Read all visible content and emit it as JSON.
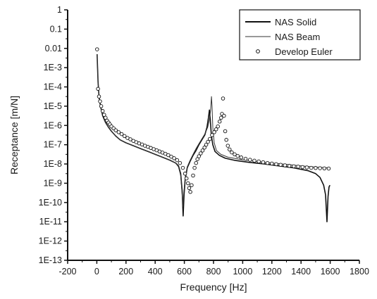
{
  "chart_data": {
    "type": "line",
    "title": "",
    "xlabel": "Frequency [Hz]",
    "ylabel": "Receptance [m/N]",
    "xlim": [
      -200,
      1800
    ],
    "ylim_log10": [
      -13,
      0
    ],
    "yscale": "log",
    "x_ticks": [
      -200,
      0,
      200,
      400,
      600,
      800,
      1000,
      1200,
      1400,
      1600,
      1800
    ],
    "x_tick_labels": [
      "-200",
      "0",
      "200",
      "400",
      "600",
      "800",
      "1000",
      "1200",
      "1400",
      "1600",
      "1800"
    ],
    "y_ticks_log10": [
      0,
      -1,
      -2,
      -3,
      -4,
      -5,
      -6,
      -7,
      -8,
      -9,
      -10,
      -11,
      -12,
      -13
    ],
    "y_tick_labels": [
      "1",
      "0.1",
      "0.01",
      "1E-3",
      "1E-4",
      "1E-5",
      "1E-6",
      "1E-7",
      "1E-8",
      "1E-9",
      "1E-10",
      "1E-11",
      "1E-12",
      "1E-13"
    ],
    "grid": false,
    "legend_position": "top-right",
    "series": [
      {
        "name": "NAS Solid",
        "style": "solid",
        "color": "#111111",
        "points": [
          [
            2,
            -2.3
          ],
          [
            8,
            -3.7
          ],
          [
            15,
            -4.5
          ],
          [
            25,
            -5.0
          ],
          [
            40,
            -5.5
          ],
          [
            60,
            -5.85
          ],
          [
            80,
            -6.1
          ],
          [
            100,
            -6.3
          ],
          [
            130,
            -6.55
          ],
          [
            160,
            -6.75
          ],
          [
            200,
            -6.9
          ],
          [
            250,
            -7.05
          ],
          [
            300,
            -7.2
          ],
          [
            350,
            -7.35
          ],
          [
            400,
            -7.5
          ],
          [
            450,
            -7.65
          ],
          [
            500,
            -7.8
          ],
          [
            540,
            -7.95
          ],
          [
            560,
            -8.1
          ],
          [
            575,
            -8.5
          ],
          [
            585,
            -9.4
          ],
          [
            592,
            -10.7
          ],
          [
            598,
            -9.6
          ],
          [
            606,
            -8.8
          ],
          [
            620,
            -8.2
          ],
          [
            640,
            -7.85
          ],
          [
            660,
            -7.55
          ],
          [
            680,
            -7.3
          ],
          [
            700,
            -7.0
          ],
          [
            720,
            -6.75
          ],
          [
            740,
            -6.5
          ],
          [
            755,
            -6.1
          ],
          [
            765,
            -5.6
          ],
          [
            772,
            -5.2
          ],
          [
            778,
            -5.7
          ],
          [
            785,
            -6.5
          ],
          [
            795,
            -7.0
          ],
          [
            810,
            -7.35
          ],
          [
            840,
            -7.55
          ],
          [
            880,
            -7.7
          ],
          [
            950,
            -7.82
          ],
          [
            1050,
            -7.92
          ],
          [
            1150,
            -8.0
          ],
          [
            1250,
            -8.1
          ],
          [
            1350,
            -8.2
          ],
          [
            1450,
            -8.35
          ],
          [
            1500,
            -8.5
          ],
          [
            1530,
            -8.7
          ],
          [
            1555,
            -9.1
          ],
          [
            1568,
            -9.6
          ],
          [
            1578,
            -11.0
          ],
          [
            1585,
            -9.7
          ],
          [
            1592,
            -9.2
          ],
          [
            1598,
            -9.1
          ]
        ]
      },
      {
        "name": "NAS Beam",
        "style": "thin",
        "color": "#333333",
        "points": [
          [
            2,
            -2.3
          ],
          [
            8,
            -3.7
          ],
          [
            15,
            -4.5
          ],
          [
            25,
            -5.0
          ],
          [
            40,
            -5.5
          ],
          [
            60,
            -5.85
          ],
          [
            80,
            -6.1
          ],
          [
            100,
            -6.3
          ],
          [
            130,
            -6.55
          ],
          [
            160,
            -6.75
          ],
          [
            200,
            -6.9
          ],
          [
            250,
            -7.05
          ],
          [
            300,
            -7.2
          ],
          [
            350,
            -7.35
          ],
          [
            400,
            -7.5
          ],
          [
            450,
            -7.65
          ],
          [
            500,
            -7.8
          ],
          [
            540,
            -7.95
          ],
          [
            560,
            -8.15
          ],
          [
            575,
            -8.6
          ],
          [
            585,
            -9.6
          ],
          [
            590,
            -10.2
          ],
          [
            596,
            -9.5
          ],
          [
            606,
            -8.7
          ],
          [
            620,
            -8.15
          ],
          [
            640,
            -7.8
          ],
          [
            660,
            -7.5
          ],
          [
            680,
            -7.2
          ],
          [
            700,
            -6.95
          ],
          [
            720,
            -6.7
          ],
          [
            740,
            -6.45
          ],
          [
            760,
            -6.1
          ],
          [
            772,
            -5.7
          ],
          [
            780,
            -5.2
          ],
          [
            786,
            -4.5
          ],
          [
            790,
            -5.0
          ],
          [
            795,
            -6.1
          ],
          [
            805,
            -6.9
          ],
          [
            820,
            -7.3
          ],
          [
            850,
            -7.5
          ],
          [
            900,
            -7.65
          ],
          [
            1000,
            -7.78
          ],
          [
            1100,
            -7.88
          ],
          [
            1200,
            -7.95
          ],
          [
            1300,
            -8.02
          ],
          [
            1400,
            -8.1
          ],
          [
            1500,
            -8.16
          ],
          [
            1595,
            -8.2
          ]
        ]
      },
      {
        "name": "Develop Euler",
        "style": "markers",
        "color": "#111111",
        "points": [
          [
            2,
            -2.05
          ],
          [
            8,
            -4.1
          ],
          [
            15,
            -4.5
          ],
          [
            22,
            -4.75
          ],
          [
            30,
            -5.0
          ],
          [
            40,
            -5.25
          ],
          [
            50,
            -5.45
          ],
          [
            60,
            -5.6
          ],
          [
            70,
            -5.75
          ],
          [
            80,
            -5.85
          ],
          [
            90,
            -5.95
          ],
          [
            100,
            -6.05
          ],
          [
            115,
            -6.15
          ],
          [
            130,
            -6.25
          ],
          [
            150,
            -6.35
          ],
          [
            170,
            -6.45
          ],
          [
            190,
            -6.55
          ],
          [
            210,
            -6.65
          ],
          [
            230,
            -6.72
          ],
          [
            250,
            -6.8
          ],
          [
            270,
            -6.87
          ],
          [
            290,
            -6.93
          ],
          [
            310,
            -6.99
          ],
          [
            330,
            -7.05
          ],
          [
            350,
            -7.11
          ],
          [
            370,
            -7.17
          ],
          [
            390,
            -7.23
          ],
          [
            410,
            -7.29
          ],
          [
            430,
            -7.35
          ],
          [
            450,
            -7.41
          ],
          [
            470,
            -7.47
          ],
          [
            490,
            -7.54
          ],
          [
            510,
            -7.62
          ],
          [
            530,
            -7.7
          ],
          [
            550,
            -7.8
          ],
          [
            570,
            -7.95
          ],
          [
            590,
            -8.2
          ],
          [
            605,
            -8.5
          ],
          [
            615,
            -8.75
          ],
          [
            625,
            -9.0
          ],
          [
            633,
            -9.25
          ],
          [
            641,
            -9.45
          ],
          [
            650,
            -9.1
          ],
          [
            660,
            -8.6
          ],
          [
            670,
            -8.2
          ],
          [
            680,
            -7.95
          ],
          [
            690,
            -7.75
          ],
          [
            700,
            -7.6
          ],
          [
            712,
            -7.45
          ],
          [
            725,
            -7.3
          ],
          [
            738,
            -7.15
          ],
          [
            750,
            -7.0
          ],
          [
            762,
            -6.85
          ],
          [
            775,
            -6.7
          ],
          [
            790,
            -6.5
          ],
          [
            805,
            -6.35
          ],
          [
            818,
            -6.2
          ],
          [
            830,
            -6.05
          ],
          [
            842,
            -5.8
          ],
          [
            852,
            -5.6
          ],
          [
            858,
            -5.4
          ],
          [
            865,
            -4.6
          ],
          [
            872,
            -5.5
          ],
          [
            880,
            -6.3
          ],
          [
            888,
            -6.75
          ],
          [
            898,
            -7.05
          ],
          [
            910,
            -7.25
          ],
          [
            925,
            -7.4
          ],
          [
            945,
            -7.5
          ],
          [
            965,
            -7.58
          ],
          [
            990,
            -7.66
          ],
          [
            1020,
            -7.73
          ],
          [
            1050,
            -7.78
          ],
          [
            1080,
            -7.83
          ],
          [
            1110,
            -7.87
          ],
          [
            1140,
            -7.91
          ],
          [
            1170,
            -7.95
          ],
          [
            1200,
            -7.98
          ],
          [
            1230,
            -8.01
          ],
          [
            1260,
            -8.04
          ],
          [
            1290,
            -8.07
          ],
          [
            1320,
            -8.1
          ],
          [
            1350,
            -8.12
          ],
          [
            1380,
            -8.14
          ],
          [
            1410,
            -8.16
          ],
          [
            1440,
            -8.18
          ],
          [
            1470,
            -8.2
          ],
          [
            1500,
            -8.21
          ],
          [
            1530,
            -8.22
          ],
          [
            1560,
            -8.23
          ],
          [
            1590,
            -8.24
          ]
        ]
      }
    ]
  }
}
